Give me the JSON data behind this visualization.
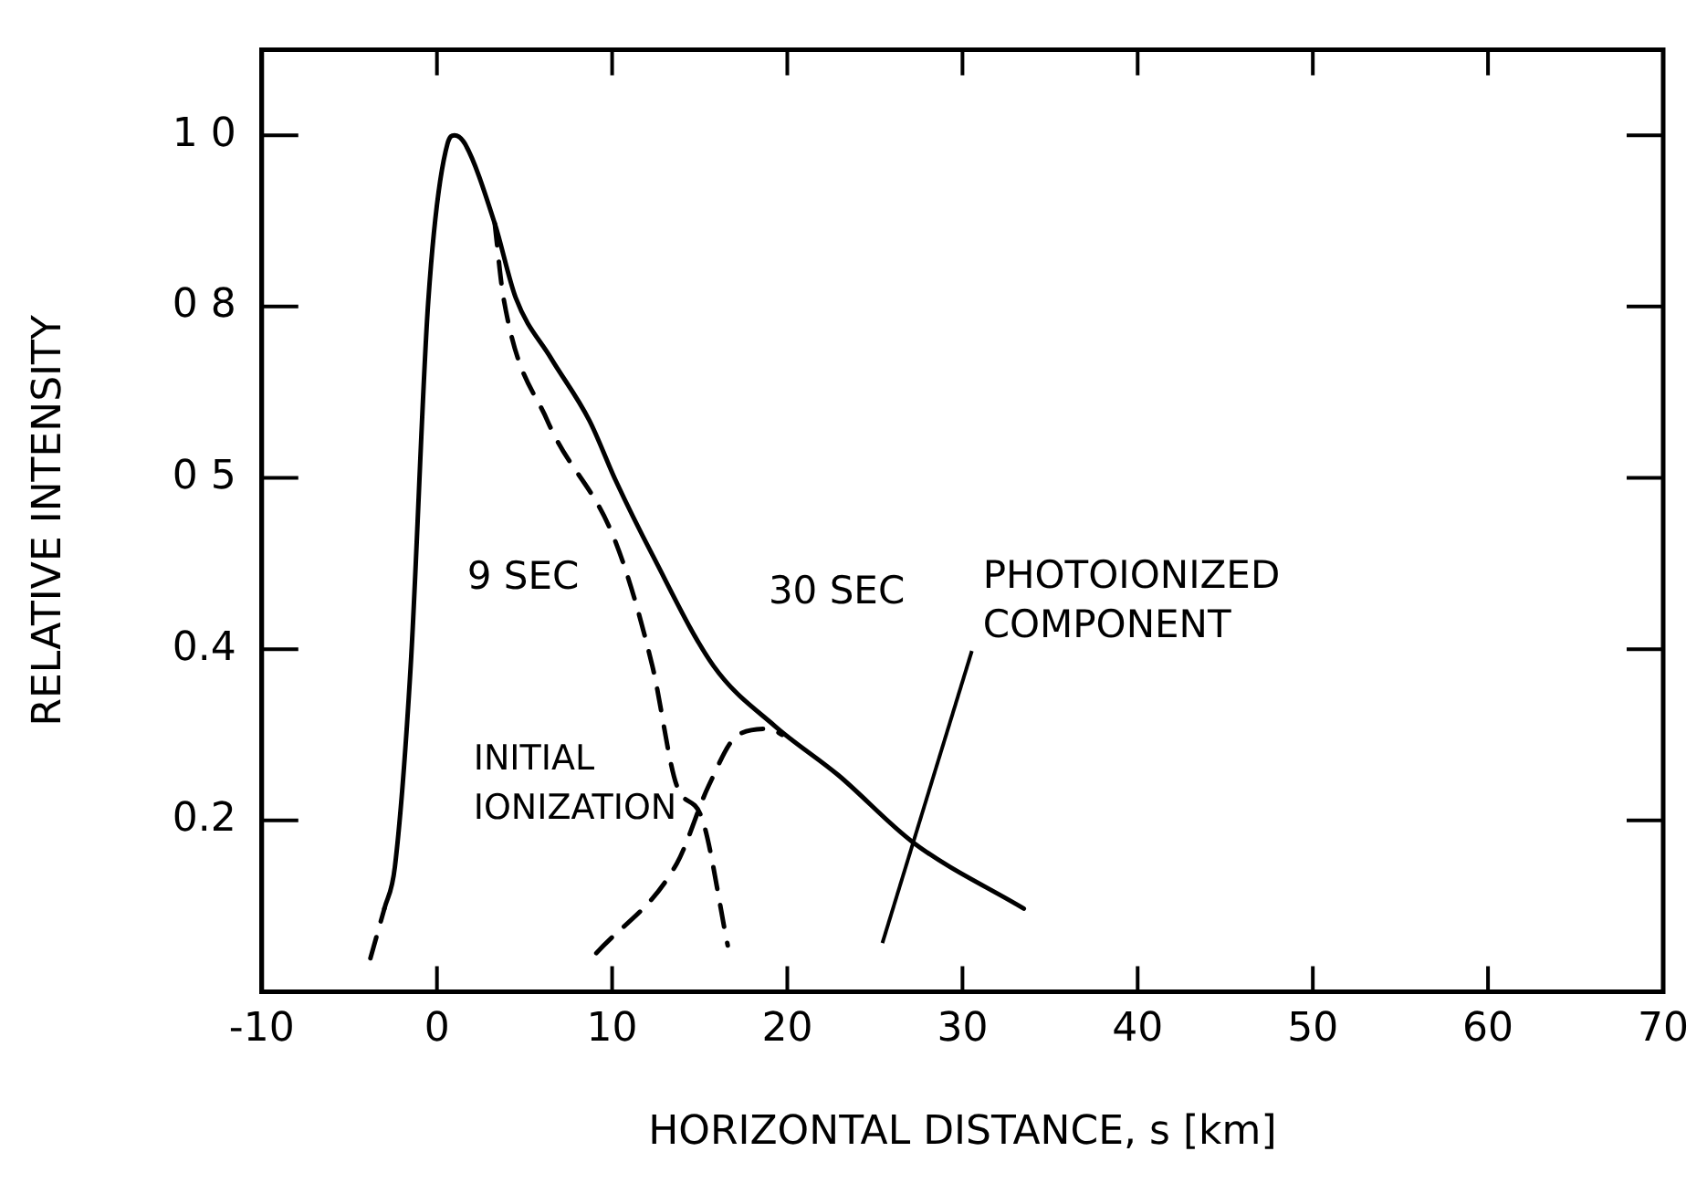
{
  "chart_data": {
    "type": "line",
    "xlabel": "HORIZONTAL DISTANCE, s [km]",
    "ylabel": "RELATIVE INTENSITY",
    "xlim": [
      -10,
      70
    ],
    "xticks": [
      -10,
      0,
      10,
      20,
      30,
      40,
      50,
      60,
      70
    ],
    "ylim": [
      0,
      1.1
    ],
    "yticks": [
      {
        "value": 0.2,
        "label": "0.2"
      },
      {
        "value": 0.4,
        "label": "0.4"
      },
      {
        "value": 0.6,
        "label": "0 5"
      },
      {
        "value": 0.8,
        "label": "0 8"
      },
      {
        "value": 1.0,
        "label": "1 0"
      }
    ],
    "grid": false,
    "legend": false,
    "marker": "none",
    "series": [
      {
        "name": "30 SEC",
        "color": "#000000",
        "line_style": "solid",
        "x": [
          -3.0,
          -2.4,
          -1.5,
          -0.5,
          0.6,
          1.0,
          1.6,
          3.3,
          4.5,
          6.5,
          8.7,
          10.2,
          12.3,
          15.8,
          19.3,
          22.9,
          27.2,
          33.5
        ],
        "values": [
          0.097,
          0.146,
          0.38,
          0.805,
          0.99,
          1.0,
          0.99,
          0.897,
          0.81,
          0.74,
          0.667,
          0.597,
          0.51,
          0.38,
          0.31,
          0.253,
          0.174,
          0.097
        ]
      },
      {
        "name": "9 SEC",
        "color": "#000000",
        "line_style": "dashed",
        "x": [
          3.3,
          3.8,
          6.3,
          10.2,
          12.3,
          13.7,
          15.1,
          16.6
        ],
        "values": [
          0.897,
          0.81,
          0.667,
          0.525,
          0.38,
          0.24,
          0.204,
          0.054
        ]
      },
      {
        "color": "#000000",
        "line_style": "dashed",
        "x": [
          -3.8,
          -3.0
        ],
        "values": [
          0.039,
          0.097
        ]
      },
      {
        "color": "#000000",
        "line_style": "dashed",
        "x": [
          9.1,
          13.7,
          15.5,
          17.2,
          19.0,
          19.7
        ],
        "values": [
          0.045,
          0.15,
          0.24,
          0.3,
          0.307,
          0.3
        ]
      }
    ],
    "annotations": [
      "INITIAL\nIONIZATION",
      "PHOTOIONIZED\nCOMPONENT"
    ]
  }
}
